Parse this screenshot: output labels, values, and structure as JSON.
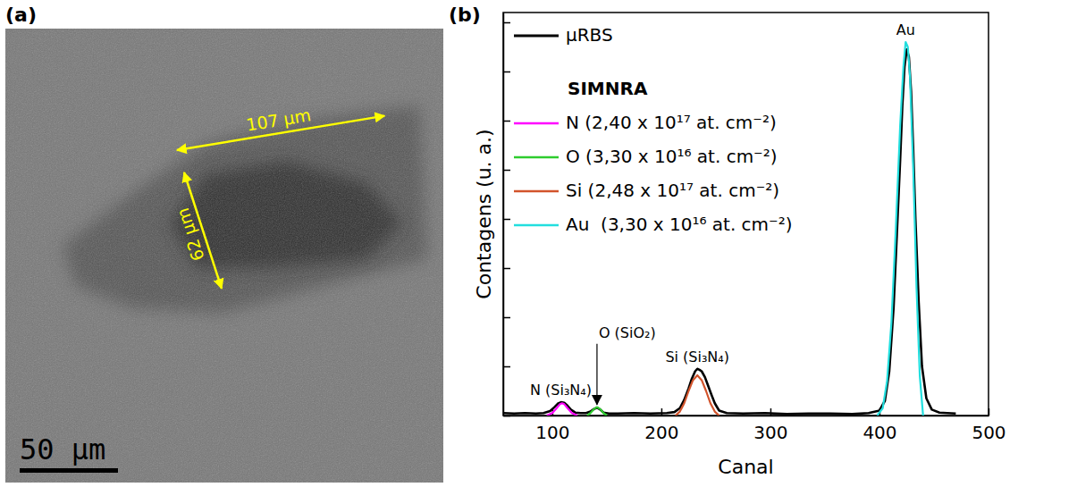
{
  "figure": {
    "panels": [
      "(a)",
      "(b)"
    ]
  },
  "image_panel": {
    "scale_bar": {
      "label": "50 μm",
      "length": 50
    },
    "measurements": [
      {
        "label": "107 μm",
        "length": 107
      },
      {
        "label": "62 μm",
        "length": 62
      }
    ]
  },
  "chart_data": {
    "type": "line",
    "x_label": "Canal",
    "y_label": "Contagens (u. a.)",
    "xlim": [
      55,
      500
    ],
    "xticks": [
      100,
      200,
      300,
      400,
      500
    ],
    "ylim": [
      0,
      8.2
    ],
    "yticks": [
      0,
      1,
      2,
      3,
      4,
      5,
      6,
      7,
      8
    ],
    "tick_labels": "x",
    "grid": false,
    "legend": "upper left",
    "legend_title": "SIMNRA",
    "series": [
      {
        "name": "μRBS",
        "color": "#000000",
        "x": [
          55,
          65,
          75,
          85,
          92,
          98,
          102,
          105,
          108,
          111,
          114,
          117,
          121,
          126,
          131,
          135,
          138,
          141,
          144,
          147,
          152,
          160,
          175,
          190,
          205,
          212,
          217,
          221,
          225,
          228,
          231,
          233,
          235,
          237,
          240,
          243,
          246,
          249,
          253,
          260,
          275,
          295,
          315,
          335,
          355,
          375,
          390,
          400,
          405,
          409,
          413,
          416,
          419,
          421,
          423,
          425,
          427,
          429,
          431,
          433,
          436,
          439,
          443,
          448,
          455,
          462,
          470
        ],
        "values": [
          0.05,
          0.04,
          0.05,
          0.04,
          0.05,
          0.09,
          0.17,
          0.24,
          0.27,
          0.26,
          0.2,
          0.12,
          0.06,
          0.05,
          0.05,
          0.08,
          0.13,
          0.16,
          0.12,
          0.06,
          0.04,
          0.04,
          0.05,
          0.04,
          0.05,
          0.07,
          0.15,
          0.32,
          0.55,
          0.75,
          0.9,
          0.95,
          0.93,
          0.9,
          0.78,
          0.6,
          0.42,
          0.25,
          0.1,
          0.05,
          0.04,
          0.05,
          0.03,
          0.04,
          0.04,
          0.03,
          0.05,
          0.1,
          0.3,
          0.9,
          2.2,
          3.7,
          5.2,
          6.3,
          7.1,
          7.45,
          7.3,
          6.6,
          5.4,
          4.0,
          2.3,
          1.0,
          0.35,
          0.12,
          0.06,
          0.05,
          0.04
        ]
      },
      {
        "name": "N (2,40 x 10¹⁷ at. cm⁻²)",
        "color": "#ff00ff",
        "annotation": "N (Si₃N₄)",
        "x": [
          95,
          100,
          104,
          107,
          109,
          111,
          114,
          118,
          123
        ],
        "values": [
          0,
          0.05,
          0.15,
          0.23,
          0.25,
          0.23,
          0.15,
          0.05,
          0
        ]
      },
      {
        "name": "O (3,30 x 10¹⁶ at. cm⁻²)",
        "color": "#2ecc2e",
        "annotation": "O (SiO₂)",
        "x": [
          132,
          135,
          138,
          141,
          144,
          147,
          150
        ],
        "values": [
          0,
          0.05,
          0.13,
          0.17,
          0.13,
          0.05,
          0
        ]
      },
      {
        "name": "Si (2,48 x 10¹⁷ at. cm⁻²)",
        "color": "#d2542c",
        "annotation": "Si (Si₃N₄)",
        "x": [
          213,
          217,
          221,
          225,
          229,
          233,
          237,
          241,
          245,
          249,
          253
        ],
        "values": [
          0,
          0.08,
          0.25,
          0.5,
          0.72,
          0.82,
          0.72,
          0.5,
          0.25,
          0.08,
          0
        ]
      },
      {
        "name": "Au  (3,30 x 10¹⁶ at. cm⁻²)",
        "color": "#22dede",
        "annotation": "Au",
        "x": [
          398,
          403,
          407,
          411,
          415,
          419,
          422,
          424,
          426,
          428,
          431,
          434,
          437,
          440
        ],
        "values": [
          0,
          0.15,
          0.7,
          1.9,
          3.8,
          5.9,
          7.1,
          7.6,
          7.5,
          6.9,
          5.0,
          2.6,
          0.8,
          0
        ]
      }
    ]
  }
}
